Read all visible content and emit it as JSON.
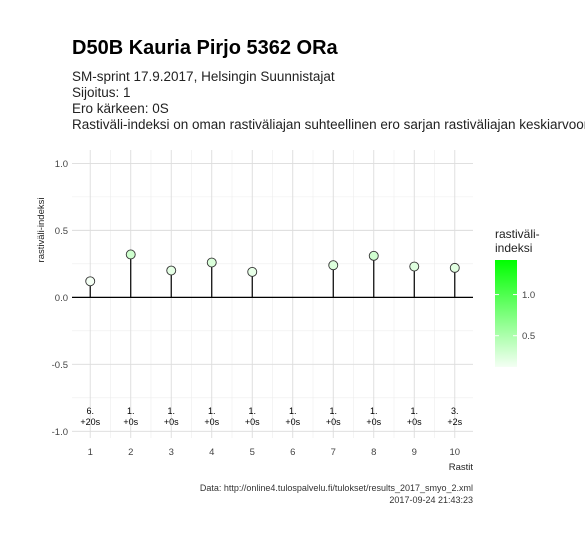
{
  "chart_data": {
    "type": "lollipop",
    "title": "D50B Kauria Pirjo 5362 ORa",
    "subtitle_lines": [
      "SM-sprint 17.9.2017, Helsingin Suunnistajat",
      "Sijoitus: 1",
      "Ero kärkeen: 0S",
      "Rastiväli-indeksi on oman rastiväliajan suhteellinen ero sarjan rastiväliajan keskiarvoon"
    ],
    "xlabel": "Rastit",
    "ylabel": "rastiväli-indeksi",
    "x": [
      1,
      2,
      3,
      4,
      5,
      6,
      7,
      8,
      9,
      10
    ],
    "x_tick_labels": [
      "1",
      "2",
      "3",
      "4",
      "5",
      "6",
      "7",
      "8",
      "9",
      "10"
    ],
    "y": [
      0.12,
      0.32,
      0.2,
      0.26,
      0.19,
      0.0,
      0.24,
      0.31,
      0.23,
      0.22
    ],
    "has_point": [
      true,
      true,
      true,
      true,
      true,
      false,
      true,
      true,
      true,
      true
    ],
    "ylim": [
      -1.0,
      1.0
    ],
    "y_ticks": [
      -1.0,
      -0.5,
      0.0,
      0.5,
      1.0
    ],
    "y_tick_labels": [
      "-1.0",
      "-0.5",
      "0.0",
      "0.5",
      "1.0"
    ],
    "annotations": [
      {
        "rank": "6.",
        "diff": "+20s"
      },
      {
        "rank": "1.",
        "diff": "+0s"
      },
      {
        "rank": "1.",
        "diff": "+0s"
      },
      {
        "rank": "1.",
        "diff": "+0s"
      },
      {
        "rank": "1.",
        "diff": "+0s"
      },
      {
        "rank": "1.",
        "diff": "+0s"
      },
      {
        "rank": "1.",
        "diff": "+0s"
      },
      {
        "rank": "1.",
        "diff": "+0s"
      },
      {
        "rank": "1.",
        "diff": "+0s"
      },
      {
        "rank": "3.",
        "diff": "+2s"
      }
    ],
    "annotation_y": -0.9,
    "grid": true,
    "legend": {
      "title_lines": [
        "rastiväli-",
        "indeksi"
      ],
      "ticks": [
        "1.0",
        "0.5"
      ],
      "tick_values": [
        1.0,
        0.5
      ],
      "range": [
        0.12,
        1.42
      ],
      "color_low": "#f4fff4",
      "color_high": "#00ff00",
      "placement": "right"
    },
    "point_fill_low": "#f4fff4",
    "point_fill_high": "#00ff00",
    "caption_lines": [
      "Data: http://online4.tulospalvelu.fi/tulokset/results_2017_smyo_2.xml",
      "2017-09-24 21:43:23"
    ]
  }
}
